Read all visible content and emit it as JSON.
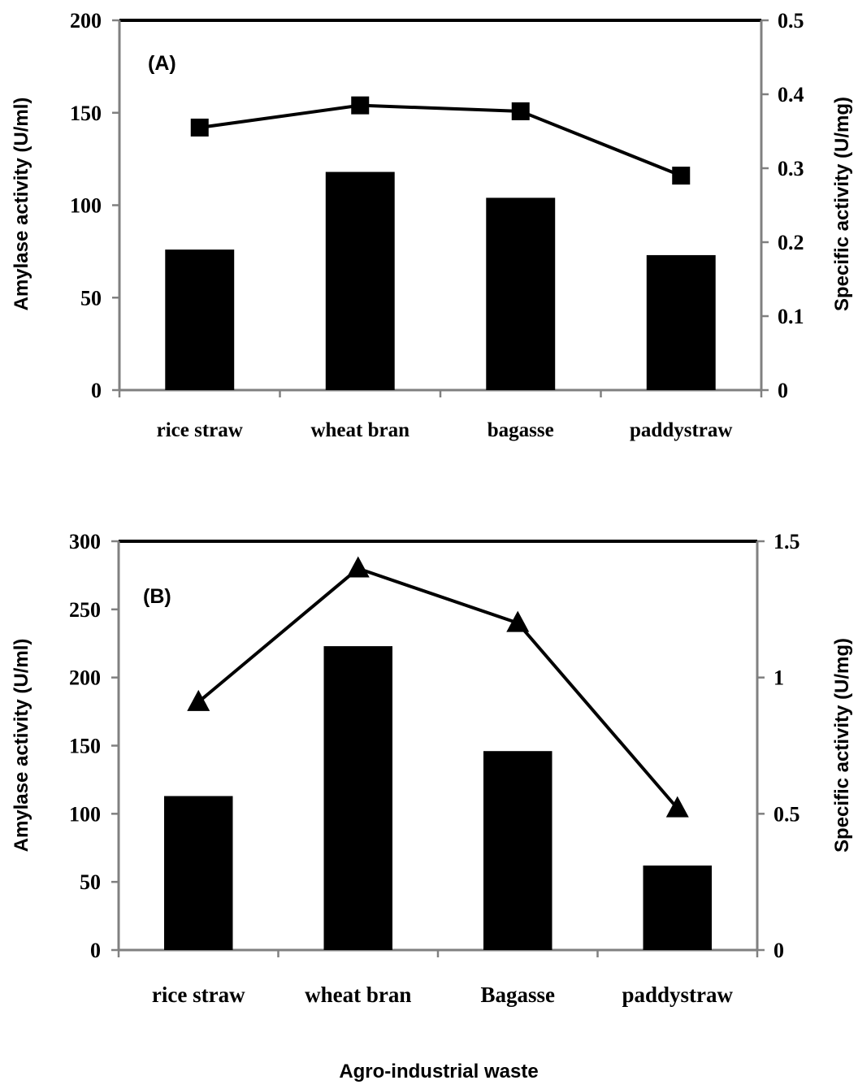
{
  "figure": {
    "xlabel": "Agro-industrial waste"
  },
  "chart_data": [
    {
      "type": "bar",
      "panel_label": "(A)",
      "categories": [
        "rice straw",
        "wheat bran",
        "bagasse",
        "paddystraw"
      ],
      "series": [
        {
          "values": [
            76,
            118,
            104,
            73
          ],
          "axis": "left",
          "mark": "bar",
          "color": "#000000"
        },
        {
          "values": [
            0.355,
            0.385,
            0.377,
            0.29
          ],
          "axis": "right",
          "mark": "line",
          "marker": "square",
          "color": "#000000"
        }
      ],
      "ylabel": "Amylase activity  (U/ml)",
      "y2label": "Specific activity  (U/mg)",
      "ylim": [
        0,
        200
      ],
      "y2lim": [
        0,
        0.5
      ],
      "yticks": [
        "0",
        "50",
        "100",
        "150",
        "200"
      ],
      "y2ticks": [
        "0",
        "0.1",
        "0.2",
        "0.3",
        "0.4",
        "0.5"
      ],
      "grid": false,
      "legend": "none"
    },
    {
      "type": "bar",
      "panel_label": "(B)",
      "categories": [
        "rice straw",
        "wheat bran",
        "Bagasse",
        "paddystraw"
      ],
      "series": [
        {
          "values": [
            113,
            223,
            146,
            62
          ],
          "axis": "left",
          "mark": "bar",
          "color": "#000000"
        },
        {
          "values": [
            0.91,
            1.4,
            1.2,
            0.52
          ],
          "axis": "right",
          "mark": "line",
          "marker": "triangle",
          "color": "#000000"
        }
      ],
      "ylabel": "Amylase activity  (U/ml)",
      "y2label": "Specific activity  (U/mg)",
      "ylim": [
        0,
        300
      ],
      "y2lim": [
        0,
        1.5
      ],
      "yticks": [
        "0",
        "50",
        "100",
        "150",
        "200",
        "250",
        "300"
      ],
      "y2ticks": [
        "0",
        "0.5",
        "1",
        "1.5"
      ],
      "grid": false,
      "legend": "none"
    }
  ]
}
